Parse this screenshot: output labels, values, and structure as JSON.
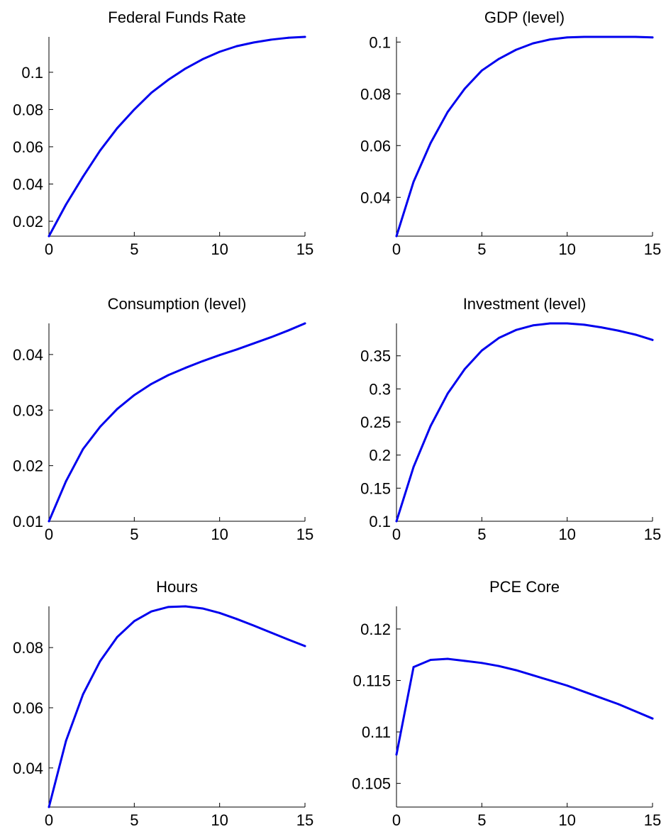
{
  "chart_data": [
    {
      "type": "line",
      "title": "Federal Funds Rate",
      "x": [
        0,
        1,
        2,
        3,
        4,
        5,
        6,
        7,
        8,
        9,
        10,
        11,
        12,
        13,
        14,
        15
      ],
      "series": [
        {
          "values": [
            0.012,
            0.029,
            0.044,
            0.058,
            0.07,
            0.08,
            0.089,
            0.096,
            0.102,
            0.107,
            0.111,
            0.114,
            0.116,
            0.1175,
            0.1185,
            0.119
          ]
        }
      ],
      "xlim": [
        0,
        15
      ],
      "ylim": [
        0.012,
        0.119
      ],
      "xticks": [
        0,
        5,
        10,
        15
      ],
      "xtick_labels": [
        "0",
        "5",
        "10",
        "15"
      ],
      "yticks": [
        0.02,
        0.04,
        0.06,
        0.08,
        0.1
      ],
      "ytick_labels": [
        "0.02",
        "0.04",
        "0.06",
        "0.08",
        "0.1"
      ],
      "grid": false,
      "color": "#0000ee"
    },
    {
      "type": "line",
      "title": "GDP (level)",
      "x": [
        0,
        1,
        2,
        3,
        4,
        5,
        6,
        7,
        8,
        9,
        10,
        11,
        12,
        13,
        14,
        15
      ],
      "series": [
        {
          "values": [
            0.025,
            0.046,
            0.061,
            0.073,
            0.082,
            0.089,
            0.0935,
            0.097,
            0.0995,
            0.101,
            0.1018,
            0.102,
            0.102,
            0.102,
            0.102,
            0.1018
          ]
        }
      ],
      "xlim": [
        0,
        15
      ],
      "ylim": [
        0.025,
        0.102
      ],
      "xticks": [
        0,
        5,
        10,
        15
      ],
      "xtick_labels": [
        "0",
        "5",
        "10",
        "15"
      ],
      "yticks": [
        0.04,
        0.06,
        0.08,
        0.1
      ],
      "ytick_labels": [
        "0.04",
        "0.06",
        "0.08",
        "0.1"
      ],
      "grid": false,
      "color": "#0000ee"
    },
    {
      "type": "line",
      "title": "Consumption (level)",
      "x": [
        0,
        1,
        2,
        3,
        4,
        5,
        6,
        7,
        8,
        9,
        10,
        11,
        12,
        13,
        14,
        15
      ],
      "series": [
        {
          "values": [
            0.01,
            0.0172,
            0.023,
            0.027,
            0.0302,
            0.0327,
            0.0347,
            0.0363,
            0.0376,
            0.0388,
            0.0399,
            0.0409,
            0.042,
            0.0431,
            0.0443,
            0.0456
          ]
        }
      ],
      "xlim": [
        0,
        15
      ],
      "ylim": [
        0.01,
        0.0456
      ],
      "xticks": [
        0,
        5,
        10,
        15
      ],
      "xtick_labels": [
        "0",
        "5",
        "10",
        "15"
      ],
      "yticks": [
        0.01,
        0.02,
        0.03,
        0.04
      ],
      "ytick_labels": [
        "0.01",
        "0.02",
        "0.03",
        "0.04"
      ],
      "grid": false,
      "color": "#0000ee"
    },
    {
      "type": "line",
      "title": "Investment (level)",
      "x": [
        0,
        1,
        2,
        3,
        4,
        5,
        6,
        7,
        8,
        9,
        10,
        11,
        12,
        13,
        14,
        15
      ],
      "series": [
        {
          "values": [
            0.1,
            0.182,
            0.244,
            0.293,
            0.33,
            0.358,
            0.377,
            0.389,
            0.396,
            0.399,
            0.399,
            0.397,
            0.393,
            0.388,
            0.382,
            0.374
          ]
        }
      ],
      "xlim": [
        0,
        15
      ],
      "ylim": [
        0.1,
        0.399
      ],
      "xticks": [
        0,
        5,
        10,
        15
      ],
      "xtick_labels": [
        "0",
        "5",
        "10",
        "15"
      ],
      "yticks": [
        0.1,
        0.15,
        0.2,
        0.25,
        0.3,
        0.35
      ],
      "ytick_labels": [
        "0.1",
        "0.15",
        "0.2",
        "0.25",
        "0.3",
        "0.35"
      ],
      "grid": false,
      "color": "#0000ee"
    },
    {
      "type": "line",
      "title": "Hours",
      "x": [
        0,
        1,
        2,
        3,
        4,
        5,
        6,
        7,
        8,
        9,
        10,
        11,
        12,
        13,
        14,
        15
      ],
      "series": [
        {
          "values": [
            0.027,
            0.049,
            0.0645,
            0.0755,
            0.0835,
            0.0888,
            0.092,
            0.0935,
            0.0937,
            0.093,
            0.0915,
            0.0895,
            0.0873,
            0.085,
            0.0827,
            0.0805
          ]
        }
      ],
      "xlim": [
        0,
        15
      ],
      "ylim": [
        0.027,
        0.0937
      ],
      "xticks": [
        0,
        5,
        10,
        15
      ],
      "xtick_labels": [
        "0",
        "5",
        "10",
        "15"
      ],
      "yticks": [
        0.04,
        0.06,
        0.08
      ],
      "ytick_labels": [
        "0.04",
        "0.06",
        "0.08"
      ],
      "grid": false,
      "color": "#0000ee"
    },
    {
      "type": "line",
      "title": "PCE Core",
      "x": [
        0,
        1,
        2,
        3,
        4,
        5,
        6,
        7,
        8,
        9,
        10,
        11,
        12,
        13,
        14,
        15
      ],
      "series": [
        {
          "values": [
            0.1078,
            0.1163,
            0.117,
            0.1171,
            0.1169,
            0.1167,
            0.1164,
            0.116,
            0.1155,
            0.115,
            0.1145,
            0.1139,
            0.1133,
            0.1127,
            0.112,
            0.1113
          ]
        }
      ],
      "xlim": [
        0,
        15
      ],
      "ylim": [
        0.1027,
        0.1222
      ],
      "xticks": [
        0,
        5,
        10,
        15
      ],
      "xtick_labels": [
        "0",
        "5",
        "10",
        "15"
      ],
      "yticks": [
        0.105,
        0.11,
        0.115,
        0.12
      ],
      "ytick_labels": [
        "0.105",
        "0.11",
        "0.115",
        "0.12"
      ],
      "grid": false,
      "color": "#0000ee"
    }
  ]
}
